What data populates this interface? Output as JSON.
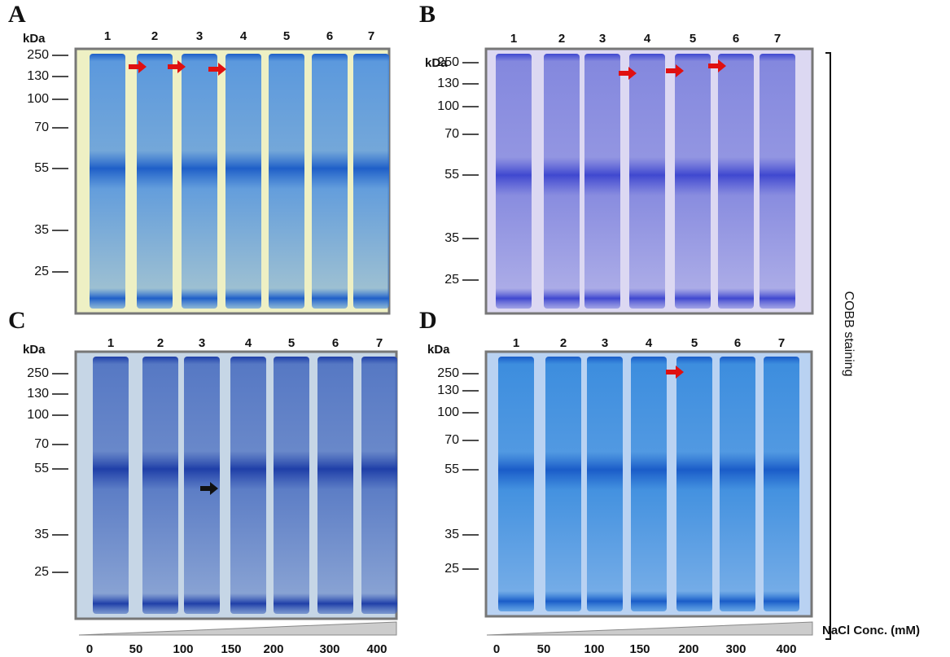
{
  "figure": {
    "side_label": "COBB staining",
    "axis_label": "NaCl Conc. (mM)",
    "concentrations": [
      "0",
      "50",
      "100",
      "150",
      "200",
      "300",
      "400"
    ]
  },
  "panels": [
    {
      "letter": "A",
      "unit": "kDa",
      "markers": [
        "250",
        "130",
        "100",
        "70",
        "55",
        "35",
        "25"
      ],
      "lanes": [
        "1",
        "2",
        "3",
        "4",
        "5",
        "6",
        "7"
      ]
    },
    {
      "letter": "B",
      "unit": "kDa",
      "markers": [
        "250",
        "130",
        "100",
        "70",
        "55",
        "35",
        "25"
      ],
      "lanes": [
        "1",
        "2",
        "3",
        "4",
        "5",
        "6",
        "7"
      ]
    },
    {
      "letter": "C",
      "unit": "kDa",
      "markers": [
        "250",
        "130",
        "100",
        "70",
        "55",
        "35",
        "25"
      ],
      "lanes": [
        "1",
        "2",
        "3",
        "4",
        "5",
        "6",
        "7"
      ]
    },
    {
      "letter": "D",
      "unit": "kDa",
      "markers": [
        "250",
        "130",
        "100",
        "70",
        "55",
        "35",
        "25"
      ],
      "lanes": [
        "1",
        "2",
        "3",
        "4",
        "5",
        "6",
        "7"
      ]
    }
  ]
}
